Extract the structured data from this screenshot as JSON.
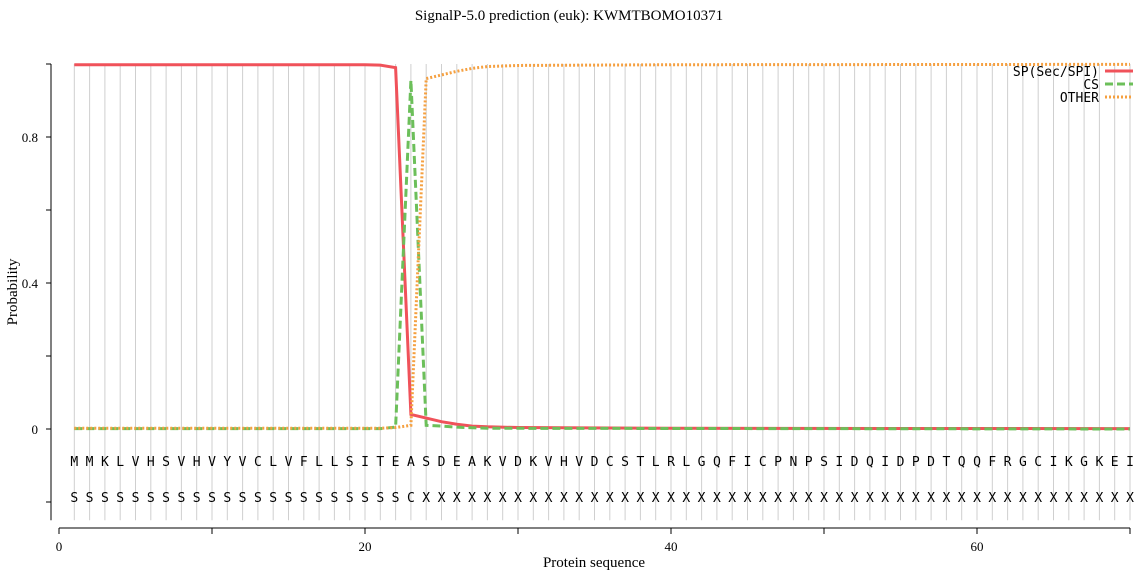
{
  "chart_data": {
    "type": "line",
    "title": "SignalP-5.0 prediction (euk):  KWMTBOMO10371",
    "xlabel": "Protein sequence",
    "ylabel": "Probability",
    "xlim": [
      0,
      70
    ],
    "ylim": [
      -0.25,
      1.0
    ],
    "xticks": [
      0,
      20,
      40,
      60
    ],
    "xtick_labels": [
      "0",
      "20",
      "40",
      "60"
    ],
    "yticks": [
      0,
      0.4,
      0.8
    ],
    "ytick_labels": [
      "0",
      "0.4",
      "0.8"
    ],
    "grid": "vertical lines at each residue",
    "legend_placement": "top-right",
    "sequence": [
      "M",
      "M",
      "K",
      "L",
      "V",
      "H",
      "S",
      "V",
      "H",
      "V",
      "Y",
      "V",
      "C",
      "L",
      "V",
      "F",
      "L",
      "L",
      "S",
      "I",
      "T",
      "E",
      "A",
      "S",
      "D",
      "E",
      "A",
      "K",
      "V",
      "D",
      "K",
      "V",
      "H",
      "V",
      "D",
      "C",
      "S",
      "T",
      "L",
      "R",
      "L",
      "G",
      "Q",
      "F",
      "I",
      "C",
      "P",
      "N",
      "P",
      "S",
      "I",
      "D",
      "Q",
      "I",
      "D",
      "P",
      "D",
      "T",
      "Q",
      "Q",
      "F",
      "R",
      "G",
      "C",
      "I",
      "K",
      "G",
      "K",
      "E",
      "I"
    ],
    "labels": [
      "S",
      "S",
      "S",
      "S",
      "S",
      "S",
      "S",
      "S",
      "S",
      "S",
      "S",
      "S",
      "S",
      "S",
      "S",
      "S",
      "S",
      "S",
      "S",
      "S",
      "S",
      "S",
      "C",
      "X",
      "X",
      "X",
      "X",
      "X",
      "X",
      "X",
      "X",
      "X",
      "X",
      "X",
      "X",
      "X",
      "X",
      "X",
      "X",
      "X",
      "X",
      "X",
      "X",
      "X",
      "X",
      "X",
      "X",
      "X",
      "X",
      "X",
      "X",
      "X",
      "X",
      "X",
      "X",
      "X",
      "X",
      "X",
      "X",
      "X",
      "X",
      "X",
      "X",
      "X",
      "X",
      "X",
      "X",
      "X",
      "X",
      "X"
    ],
    "series": [
      {
        "name": "SP(Sec/SPI)",
        "color": "#f0525a",
        "style": "solid",
        "points": [
          [
            1,
            0.998
          ],
          [
            10,
            0.998
          ],
          [
            20,
            0.998
          ],
          [
            21,
            0.997
          ],
          [
            22,
            0.99
          ],
          [
            23,
            0.04
          ],
          [
            24,
            0.03
          ],
          [
            25,
            0.02
          ],
          [
            26,
            0.013
          ],
          [
            27,
            0.008
          ],
          [
            28,
            0.006
          ],
          [
            30,
            0.004
          ],
          [
            40,
            0.002
          ],
          [
            70,
            0.001
          ]
        ]
      },
      {
        "name": "CS",
        "color": "#6cbf5a",
        "style": "dashed",
        "points": [
          [
            1,
            0.001
          ],
          [
            21,
            0.001
          ],
          [
            22,
            0.005
          ],
          [
            23,
            0.955
          ],
          [
            24,
            0.01
          ],
          [
            25,
            0.008
          ],
          [
            26,
            0.005
          ],
          [
            28,
            0.002
          ],
          [
            70,
            0.0
          ]
        ]
      },
      {
        "name": "OTHER",
        "color": "#f5a040",
        "style": "dotted",
        "points": [
          [
            1,
            0.002
          ],
          [
            21,
            0.002
          ],
          [
            22,
            0.004
          ],
          [
            23,
            0.01
          ],
          [
            24,
            0.96
          ],
          [
            25,
            0.97
          ],
          [
            26,
            0.98
          ],
          [
            27,
            0.988
          ],
          [
            28,
            0.993
          ],
          [
            30,
            0.996
          ],
          [
            40,
            0.998
          ],
          [
            70,
            0.999
          ]
        ]
      }
    ]
  }
}
